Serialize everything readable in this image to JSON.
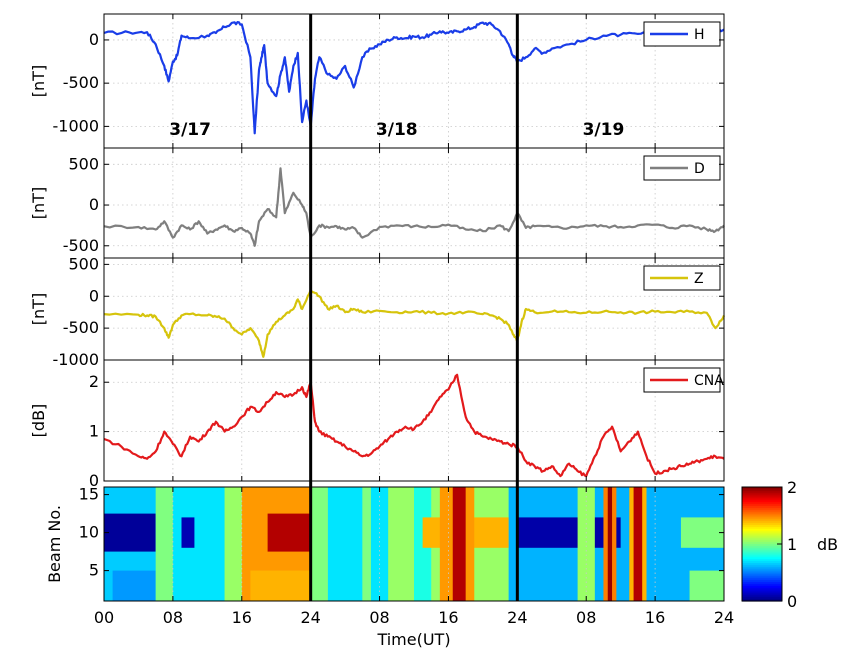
{
  "chart_data": [
    {
      "type": "line",
      "ylabel": "[nT]",
      "ylim": [
        -1250,
        300
      ],
      "yticks": [
        0,
        -500,
        -1000
      ],
      "ytick_labels": [
        "0",
        "-500",
        "-1000"
      ],
      "series": [
        {
          "name": "H",
          "color": "#1a3de8",
          "x": [
            0,
            3,
            5,
            6,
            7,
            7.5,
            8,
            8.5,
            9,
            10,
            12,
            13,
            14,
            15,
            16,
            17,
            17.5,
            18,
            18.3,
            18.6,
            19,
            20,
            20.5,
            21,
            21.5,
            22,
            22.5,
            23,
            23.5,
            24,
            24.5,
            25,
            26,
            27,
            28,
            29,
            30,
            31,
            32,
            33,
            34,
            35,
            36,
            37,
            38,
            39,
            40,
            41,
            42,
            43,
            44,
            45,
            46,
            47,
            47.5,
            48,
            49,
            50,
            51,
            52,
            54,
            56,
            58,
            60,
            62,
            64,
            66,
            68,
            70,
            72
          ],
          "values": [
            80,
            85,
            90,
            -50,
            -300,
            -480,
            -250,
            -180,
            50,
            20,
            50,
            80,
            150,
            200,
            180,
            -200,
            -1080,
            -350,
            -200,
            -60,
            -500,
            -650,
            -400,
            -200,
            -600,
            -300,
            -150,
            -950,
            -700,
            -1000,
            -450,
            -200,
            -400,
            -450,
            -300,
            -550,
            -200,
            -100,
            -50,
            0,
            30,
            20,
            40,
            30,
            60,
            100,
            80,
            100,
            120,
            150,
            200,
            180,
            100,
            -50,
            -180,
            -250,
            -200,
            -100,
            -150,
            -100,
            -50,
            0,
            50,
            60,
            70,
            80,
            90,
            100,
            110,
            120
          ]
        }
      ]
    },
    {
      "type": "line",
      "ylabel": "[nT]",
      "ylim": [
        -650,
        700
      ],
      "yticks": [
        500,
        0,
        -500
      ],
      "ytick_labels": [
        "500",
        "0",
        "-500"
      ],
      "series": [
        {
          "name": "D",
          "color": "#7f7f7f",
          "x": [
            0,
            4,
            6,
            7,
            8,
            9,
            10,
            11,
            12,
            13,
            14,
            15,
            16,
            17,
            17.5,
            18,
            19,
            20,
            20.5,
            21,
            22,
            23,
            23.5,
            24,
            25,
            26,
            27,
            28,
            29,
            30,
            32,
            34,
            36,
            38,
            40,
            42,
            44,
            46,
            47,
            48,
            49,
            50,
            52,
            54,
            56,
            58,
            60,
            62,
            64,
            66,
            68,
            70,
            71,
            72
          ],
          "values": [
            -260,
            -270,
            -300,
            -200,
            -400,
            -250,
            -300,
            -200,
            -350,
            -300,
            -250,
            -320,
            -280,
            -350,
            -500,
            -200,
            -50,
            -150,
            450,
            -100,
            150,
            0,
            -100,
            -400,
            -250,
            -270,
            -260,
            -300,
            -280,
            -400,
            -270,
            -250,
            -260,
            -270,
            -240,
            -300,
            -320,
            -250,
            -320,
            -100,
            -280,
            -260,
            -270,
            -280,
            -250,
            -260,
            -270,
            -250,
            -240,
            -280,
            -250,
            -300,
            -320,
            -250
          ]
        }
      ]
    },
    {
      "type": "line",
      "ylabel": "[nT]",
      "ylim": [
        -1000,
        600
      ],
      "yticks": [
        500,
        0,
        -500,
        -1000
      ],
      "ytick_labels": [
        "500",
        "0",
        "-500",
        "-1000"
      ],
      "series": [
        {
          "name": "Z",
          "color": "#d6c40c",
          "x": [
            0,
            4,
            5,
            6,
            7,
            7.5,
            8,
            9,
            10,
            12,
            13,
            14,
            15,
            16,
            17,
            18,
            18.5,
            19,
            20,
            21,
            22,
            22.5,
            23,
            24,
            25,
            26,
            27,
            28,
            29,
            30,
            32,
            34,
            36,
            38,
            40,
            42,
            44,
            45,
            46,
            47,
            47.5,
            48,
            48.5,
            49,
            50,
            52,
            54,
            56,
            58,
            60,
            62,
            64,
            66,
            68,
            70,
            71,
            72
          ],
          "values": [
            -280,
            -290,
            -300,
            -320,
            -500,
            -650,
            -450,
            -300,
            -280,
            -300,
            -320,
            -350,
            -500,
            -600,
            -500,
            -700,
            -950,
            -600,
            -400,
            -300,
            -200,
            -50,
            -200,
            100,
            0,
            -200,
            -150,
            -250,
            -200,
            -250,
            -230,
            -250,
            -240,
            -260,
            -270,
            -250,
            -280,
            -300,
            -350,
            -450,
            -600,
            -700,
            -400,
            -200,
            -250,
            -240,
            -250,
            -260,
            -240,
            -250,
            -260,
            -240,
            -250,
            -240,
            -260,
            -500,
            -300
          ]
        }
      ]
    },
    {
      "type": "line",
      "ylabel": "[dB]",
      "ylim": [
        0,
        2.45
      ],
      "yticks": [
        2,
        1,
        0
      ],
      "ytick_labels": [
        "2",
        "1",
        "0"
      ],
      "series": [
        {
          "name": "CNA",
          "color": "#e31a1c",
          "x": [
            0,
            2,
            4,
            5,
            6,
            7,
            8,
            9,
            10,
            11,
            12,
            13,
            14,
            15,
            16,
            17,
            18,
            19,
            20,
            21,
            22,
            23,
            23.5,
            24,
            24.5,
            25,
            26,
            27,
            28,
            29,
            30,
            31,
            32,
            33,
            34,
            35,
            36,
            37,
            38,
            39,
            40,
            41,
            42,
            43,
            44,
            45,
            46,
            47,
            48,
            49,
            50,
            51,
            52,
            53,
            54,
            55,
            56,
            57,
            58,
            59,
            60,
            61,
            62,
            63,
            64,
            65,
            66,
            67,
            68,
            69,
            70,
            71,
            72
          ],
          "values": [
            0.85,
            0.7,
            0.5,
            0.45,
            0.6,
            1.0,
            0.75,
            0.5,
            0.9,
            0.8,
            1.0,
            1.2,
            1.0,
            1.1,
            1.3,
            1.5,
            1.4,
            1.6,
            1.8,
            1.7,
            1.75,
            1.9,
            1.7,
            2.0,
            1.2,
            1.0,
            0.9,
            0.8,
            0.7,
            0.6,
            0.5,
            0.55,
            0.7,
            0.85,
            1.0,
            1.1,
            1.05,
            1.2,
            1.4,
            1.7,
            1.85,
            2.15,
            1.3,
            1.0,
            0.9,
            0.85,
            0.8,
            0.75,
            0.7,
            0.4,
            0.3,
            0.2,
            0.3,
            0.1,
            0.35,
            0.2,
            0.1,
            0.5,
            0.9,
            1.1,
            0.6,
            0.8,
            1.0,
            0.5,
            0.15,
            0.2,
            0.25,
            0.3,
            0.35,
            0.4,
            0.45,
            0.5,
            0.45
          ]
        }
      ]
    },
    {
      "type": "heatmap",
      "ylabel": "Beam No.",
      "xlabel": "Time(UT)",
      "ylim": [
        1,
        16
      ],
      "yticks": [
        15,
        10,
        5
      ],
      "ytick_labels": [
        "15",
        "10",
        "5"
      ],
      "xticks": [
        0,
        8,
        16,
        24,
        32,
        40,
        48,
        56,
        64,
        72
      ],
      "xtick_labels": [
        "00",
        "08",
        "16",
        "24",
        "08",
        "16",
        "24",
        "08",
        "16",
        "24"
      ],
      "colorbar": {
        "label": "dB",
        "min": 0,
        "max": 2,
        "ticks": [
          0,
          1,
          2
        ],
        "tick_labels": [
          "0",
          "1",
          "2"
        ]
      },
      "bands": [
        {
          "x0": 0,
          "x1": 72,
          "y0": 1,
          "y1": 16,
          "v": 0.65
        },
        {
          "x0": 0,
          "x1": 6,
          "y0": 7.5,
          "y1": 12.5,
          "v": 0.05
        },
        {
          "x0": 1,
          "x1": 6,
          "y0": 1,
          "y1": 5,
          "v": 0.55
        },
        {
          "x0": 6,
          "x1": 8,
          "y0": 1,
          "y1": 16,
          "v": 1.0
        },
        {
          "x0": 8,
          "x1": 14,
          "y0": 1,
          "y1": 16,
          "v": 0.7
        },
        {
          "x0": 9,
          "x1": 10.5,
          "y0": 8,
          "y1": 12,
          "v": 0.1
        },
        {
          "x0": 14,
          "x1": 24,
          "y0": 1,
          "y1": 16,
          "v": 1.05
        },
        {
          "x0": 16,
          "x1": 24,
          "y0": 1,
          "y1": 16,
          "v": 1.45
        },
        {
          "x0": 19,
          "x1": 24,
          "y0": 7.5,
          "y1": 12.5,
          "v": 1.9
        },
        {
          "x0": 17,
          "x1": 24,
          "y0": 1,
          "y1": 5,
          "v": 1.4
        },
        {
          "x0": 24,
          "x1": 33,
          "y0": 1,
          "y1": 16,
          "v": 0.7
        },
        {
          "x0": 24,
          "x1": 26,
          "y0": 1,
          "y1": 16,
          "v": 1.0
        },
        {
          "x0": 30,
          "x1": 31,
          "y0": 1,
          "y1": 16,
          "v": 1.0
        },
        {
          "x0": 33,
          "x1": 47,
          "y0": 1,
          "y1": 16,
          "v": 1.05
        },
        {
          "x0": 36,
          "x1": 38,
          "y0": 1,
          "y1": 16,
          "v": 0.8
        },
        {
          "x0": 37,
          "x1": 47,
          "y0": 8,
          "y1": 12,
          "v": 1.4
        },
        {
          "x0": 39,
          "x1": 43,
          "y0": 1,
          "y1": 16,
          "v": 1.45
        },
        {
          "x0": 40.5,
          "x1": 42,
          "y0": 1,
          "y1": 16,
          "v": 1.9
        },
        {
          "x0": 47,
          "x1": 72,
          "y0": 1,
          "y1": 16,
          "v": 0.6
        },
        {
          "x0": 48,
          "x1": 60,
          "y0": 8,
          "y1": 12,
          "v": 0.08
        },
        {
          "x0": 55,
          "x1": 57,
          "y0": 1,
          "y1": 16,
          "v": 1.05
        },
        {
          "x0": 58,
          "x1": 59.5,
          "y0": 1,
          "y1": 16,
          "v": 1.5
        },
        {
          "x0": 58.5,
          "x1": 59,
          "y0": 1,
          "y1": 16,
          "v": 1.95
        },
        {
          "x0": 61,
          "x1": 63,
          "y0": 1,
          "y1": 16,
          "v": 1.4
        },
        {
          "x0": 61.5,
          "x1": 62.5,
          "y0": 1,
          "y1": 16,
          "v": 1.9
        },
        {
          "x0": 67,
          "x1": 72,
          "y0": 8,
          "y1": 12,
          "v": 1.0
        },
        {
          "x0": 68,
          "x1": 72,
          "y0": 1,
          "y1": 5,
          "v": 1.0
        }
      ]
    }
  ],
  "day_labels": [
    "3/17",
    "3/18",
    "3/19"
  ],
  "day_boundaries": [
    24,
    48
  ],
  "xlim": [
    0,
    72
  ],
  "colors": {
    "boundary": "#000000",
    "grid": "#c8c8c8"
  }
}
